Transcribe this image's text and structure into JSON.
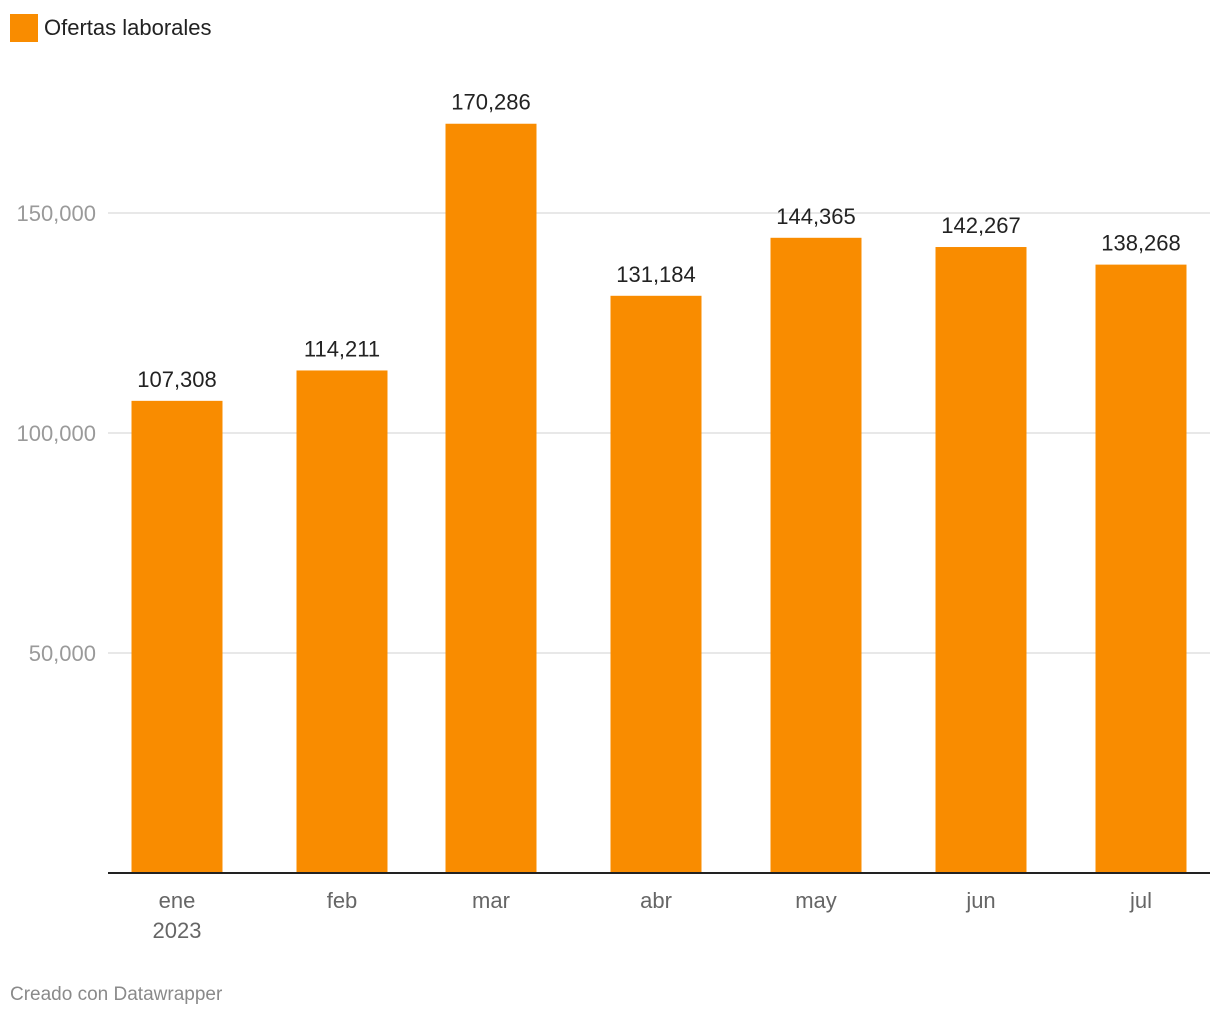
{
  "legend": {
    "label": "Ofertas laborales",
    "color": "#F98C00"
  },
  "credit": "Creado con Datawrapper",
  "colors": {
    "bar": "#F98C00",
    "grid": "#e0e0e0",
    "baseline": "#222222"
  },
  "chart_data": {
    "type": "bar",
    "categories": [
      "ene",
      "feb",
      "mar",
      "abr",
      "may",
      "jun",
      "jul"
    ],
    "category_sublabels": [
      "2023",
      "",
      "",
      "",
      "",
      "",
      ""
    ],
    "series": [
      {
        "name": "Ofertas laborales",
        "values": [
          107308,
          114211,
          170286,
          131184,
          144365,
          142267,
          138268
        ]
      }
    ],
    "value_labels": [
      "107,308",
      "114,211",
      "170,286",
      "131,184",
      "144,365",
      "142,267",
      "138,268"
    ],
    "yticks": [
      50000,
      100000,
      150000
    ],
    "ytick_labels": [
      "50,000",
      "100,000",
      "150,000"
    ],
    "ylim": [
      0,
      180000
    ],
    "grid": true,
    "legend_position": "top-left"
  }
}
